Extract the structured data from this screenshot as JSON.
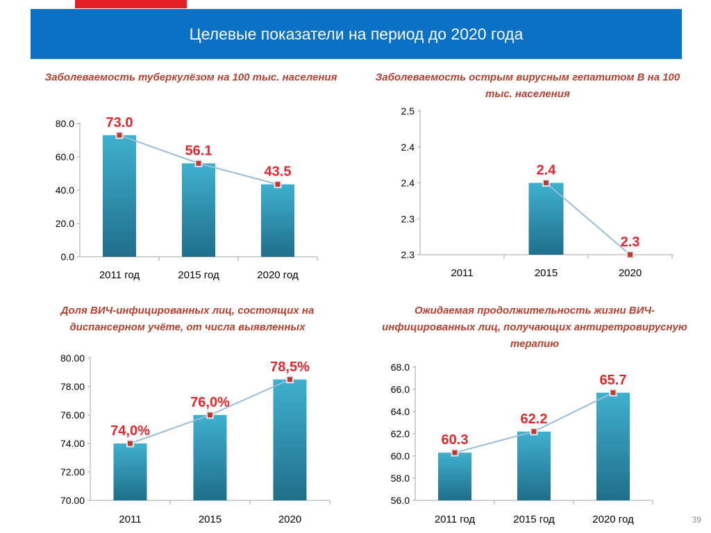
{
  "slide": {
    "title": "Целевые показатели на период до 2020 года",
    "page_number": "39",
    "colors": {
      "header": "#0a71c4",
      "accent": "#e31e24",
      "title_text": "#b5402e",
      "bar": "#2f9bb8",
      "line": "#9bbbd9",
      "label": "#e3262b"
    }
  },
  "chart_data": [
    {
      "type": "bar",
      "title": "Заболеваемость туберкулёзом на 100 тыс. населения",
      "categories": [
        "2011 год",
        "2015 год",
        "2020 год"
      ],
      "values": [
        73.0,
        56.1,
        43.5
      ],
      "data_labels": [
        "73.0",
        "56.1",
        "43.5"
      ],
      "ylim": [
        0,
        80
      ],
      "yticks": [
        "0.0",
        "20.0",
        "40.0",
        "60.0",
        "80.0"
      ],
      "overlay_line": true
    },
    {
      "type": "bar",
      "title": "Заболеваемость острым вирусным гепатитом В на 100 тыс. населения",
      "categories": [
        "2011",
        "2015",
        "2020"
      ],
      "values": [
        null,
        2.4,
        2.3
      ],
      "data_labels": [
        "",
        "2.4",
        "2.3"
      ],
      "ylim": [
        2.3,
        2.5
      ],
      "yticks": [
        "2.3",
        "2.3",
        "2.4",
        "2.4",
        "2.5"
      ],
      "overlay_line": true
    },
    {
      "type": "bar",
      "title": "Доля ВИЧ-инфицированных лиц, состоящих на диспансерном учёте, от числа выявленных",
      "categories": [
        "2011",
        "2015",
        "2020"
      ],
      "values": [
        74.0,
        76.0,
        78.5
      ],
      "data_labels": [
        "74,0%",
        "76,0%",
        "78,5%"
      ],
      "ylim": [
        70,
        80
      ],
      "yticks": [
        "70.00",
        "72.00",
        "74.00",
        "76.00",
        "78.00",
        "80.00"
      ],
      "overlay_line": true
    },
    {
      "type": "bar",
      "title": "Ожидаемая продолжительность жизни ВИЧ-инфицированных лиц, получающих антиретровирусную терапию",
      "categories": [
        "2011 год",
        "2015 год",
        "2020 год"
      ],
      "values": [
        60.3,
        62.2,
        65.7
      ],
      "data_labels": [
        "60.3",
        "62.2",
        "65.7"
      ],
      "ylim": [
        56,
        68
      ],
      "yticks": [
        "56.0",
        "58.0",
        "60.0",
        "62.0",
        "64.0",
        "66.0",
        "68.0"
      ],
      "overlay_line": true
    }
  ]
}
